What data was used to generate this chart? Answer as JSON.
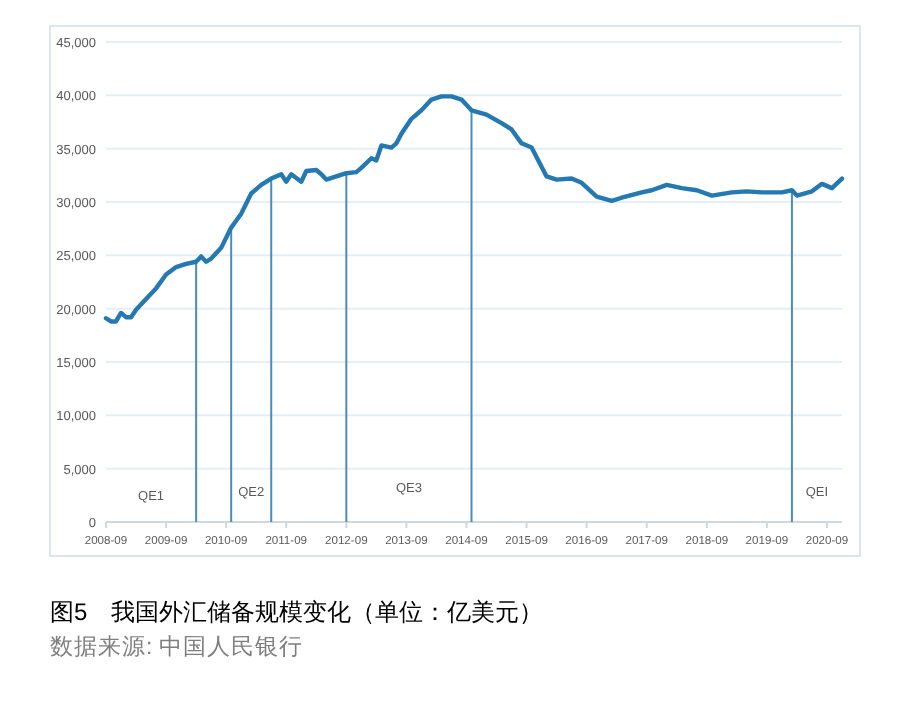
{
  "chart_data": {
    "type": "line",
    "title": "图5　我国外汇储备规模变化（单位：亿美元）",
    "annotations": [
      "数据来源: 中国人民银行",
      "QE1",
      "QE2",
      "QE3",
      "QEI"
    ],
    "x": [
      "2008-09",
      "2008-10",
      "2008-11",
      "2008-12",
      "2009-01",
      "2009-02",
      "2009-03",
      "2009-05",
      "2009-07",
      "2009-09",
      "2009-11",
      "2010-01",
      "2010-03",
      "2010-04",
      "2010-05",
      "2010-06",
      "2010-08",
      "2010-10",
      "2010-12",
      "2011-02",
      "2011-04",
      "2011-06",
      "2011-08",
      "2011-09",
      "2011-10",
      "2011-12",
      "2012-01",
      "2012-03",
      "2012-04",
      "2012-05",
      "2012-07",
      "2012-09",
      "2012-11",
      "2012-12",
      "2013-02",
      "2013-03",
      "2013-04",
      "2013-06",
      "2013-07",
      "2013-08",
      "2013-10",
      "2013-12",
      "2014-02",
      "2014-04",
      "2014-06",
      "2014-08",
      "2014-10",
      "2015-01",
      "2015-04",
      "2015-06",
      "2015-08",
      "2015-10",
      "2016-01",
      "2016-03",
      "2016-06",
      "2016-08",
      "2016-11",
      "2017-02",
      "2017-04",
      "2017-08",
      "2017-10",
      "2018-01",
      "2018-04",
      "2018-07",
      "2018-10",
      "2019-02",
      "2019-05",
      "2019-08",
      "2019-12",
      "2020-02",
      "2020-03",
      "2020-06",
      "2020-08",
      "2020-10",
      "2020-12"
    ],
    "series": [
      {
        "color": "#2479b0",
        "values": [
          19100,
          18800,
          18800,
          19600,
          19200,
          19200,
          19900,
          20900,
          21900,
          23200,
          23900,
          24200,
          24400,
          24900,
          24400,
          24700,
          25700,
          27600,
          28900,
          30800,
          31600,
          32200,
          32600,
          31900,
          32600,
          31900,
          32900,
          33000,
          32600,
          32100,
          32400,
          32700,
          32800,
          33200,
          34100,
          33900,
          35300,
          35100,
          35500,
          36400,
          37800,
          38600,
          39600,
          39900,
          39900,
          39600,
          38600,
          38200,
          37400,
          36800,
          35500,
          35100,
          32400,
          32100,
          32200,
          31800,
          30500,
          30100,
          30400,
          30900,
          31100,
          31600,
          31300,
          31100,
          30600,
          30900,
          31000,
          30900,
          30900,
          31100,
          30600,
          31000,
          31700,
          31300,
          32200
        ]
      }
    ],
    "xlim": [
      "2008-09",
      "2020-12"
    ],
    "ylim": [
      0,
      45000
    ],
    "xticks": [
      "2008-09",
      "2009-09",
      "2010-09",
      "2011-09",
      "2012-09",
      "2013-09",
      "2014-09",
      "2015-09",
      "2016-09",
      "2017-09",
      "2018-09",
      "2019-09",
      "2020-09"
    ],
    "yticks": [
      {
        "value": 0,
        "label": "0"
      },
      {
        "value": 5000,
        "label": "5,000"
      },
      {
        "value": 10000,
        "label": "10,000"
      },
      {
        "value": 15000,
        "label": "15,000"
      },
      {
        "value": 20000,
        "label": "20,000"
      },
      {
        "value": 25000,
        "label": "25,000"
      },
      {
        "value": 30000,
        "label": "30,000"
      },
      {
        "value": 35000,
        "label": "35,000"
      },
      {
        "value": 40000,
        "label": "40,000"
      },
      {
        "value": 45000,
        "label": "45,000"
      }
    ],
    "grid": "y",
    "ref_lines": [
      {
        "axis": "x",
        "value": "2010-03",
        "color": "#4a8cbf"
      },
      {
        "axis": "x",
        "value": "2010-10",
        "color": "#4a8cbf"
      },
      {
        "axis": "x",
        "value": "2011-06",
        "color": "#4a8cbf"
      },
      {
        "axis": "x",
        "value": "2012-09",
        "color": "#4a8cbf"
      },
      {
        "axis": "x",
        "value": "2014-10",
        "color": "#4a8cbf"
      },
      {
        "axis": "x",
        "value": "2020-02",
        "color": "#4a8cbf"
      }
    ]
  }
}
